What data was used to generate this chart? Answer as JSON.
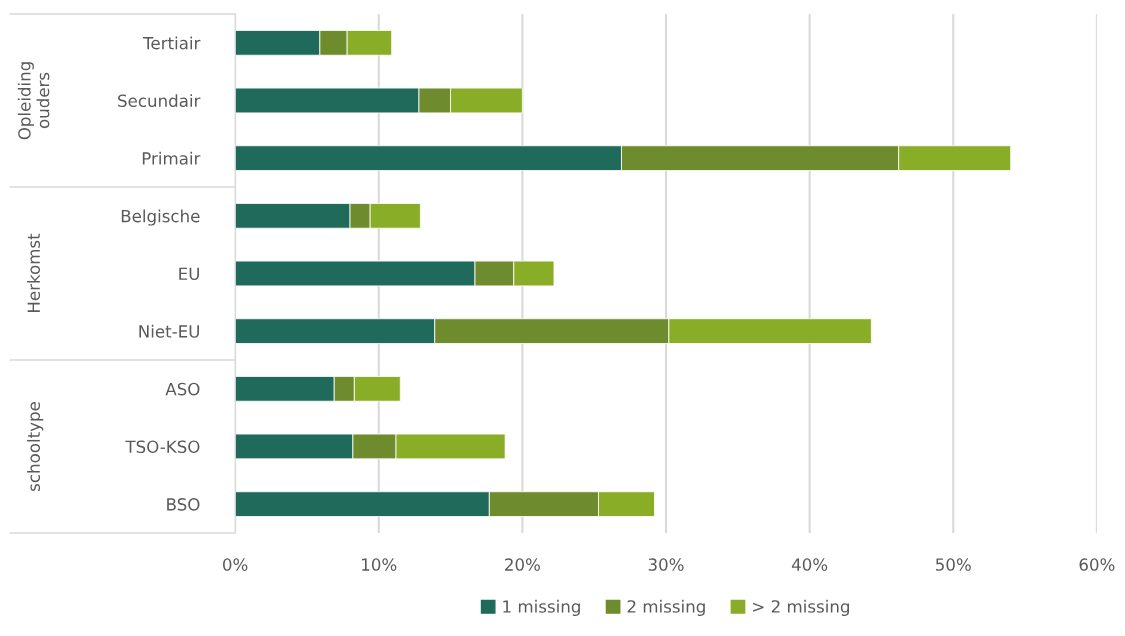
{
  "chart_data": {
    "type": "bar",
    "orientation": "horizontal",
    "stacked": true,
    "categories": [
      "Tertiair",
      "Secundair",
      "Primair",
      "Belgische",
      "EU",
      "Niet-EU",
      "ASO",
      "TSO-KSO",
      "BSO"
    ],
    "series": [
      {
        "name": "1 missing",
        "color": "#1f6a5a",
        "values": [
          5.9,
          12.8,
          26.9,
          8.0,
          16.7,
          13.9,
          6.9,
          8.2,
          17.7
        ]
      },
      {
        "name": "2 missing",
        "color": "#6e8b2e",
        "values": [
          1.9,
          2.2,
          19.3,
          1.4,
          2.7,
          16.3,
          1.4,
          3.0,
          7.6
        ]
      },
      {
        "name": "> 2 missing",
        "color": "#8aad28",
        "values": [
          3.1,
          5.0,
          7.8,
          3.5,
          2.8,
          14.1,
          3.2,
          7.6,
          3.9
        ]
      }
    ],
    "xlim": [
      0,
      60
    ],
    "xticks": [
      {
        "value": 0,
        "label": "0%"
      },
      {
        "value": 10,
        "label": "10%"
      },
      {
        "value": 20,
        "label": "20%"
      },
      {
        "value": 30,
        "label": "30%"
      },
      {
        "value": 40,
        "label": "40%"
      },
      {
        "value": 50,
        "label": "50%"
      },
      {
        "value": 60,
        "label": "60%"
      }
    ],
    "annotations": [
      "Opleiding\nouders",
      "Herkomst",
      "schooltype"
    ],
    "grid": "x",
    "legend": "bottom"
  }
}
